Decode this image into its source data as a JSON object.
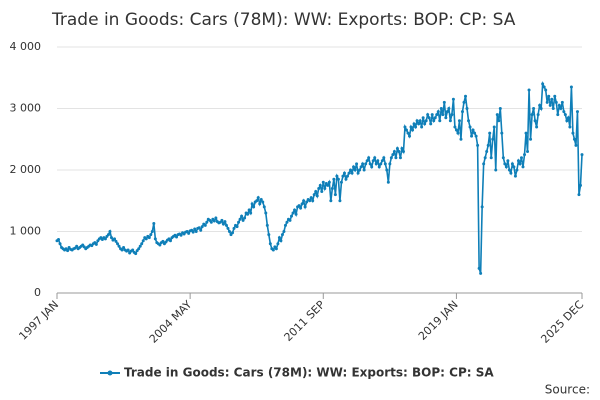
{
  "chart_data": {
    "type": "line",
    "title": "Trade in Goods: Cars (78M): WW: Exports: BOP: CP: SA",
    "source": "Source:",
    "categories": [
      "1997 JAN",
      null,
      null,
      null,
      null,
      null,
      null,
      null,
      null,
      null,
      null,
      null,
      null,
      null,
      null,
      null,
      null,
      null,
      null,
      null,
      null,
      null,
      null,
      null,
      null,
      null,
      null,
      null,
      null,
      null,
      null,
      null,
      null,
      null,
      null,
      null,
      null,
      null,
      null,
      null,
      null,
      null,
      null,
      null,
      null,
      null,
      null,
      null,
      null,
      null,
      null,
      null,
      null,
      null,
      null,
      null,
      null,
      null,
      null,
      null,
      null,
      null,
      null,
      null,
      null,
      null,
      null,
      null,
      null,
      null,
      null,
      null,
      null,
      null,
      null,
      null,
      null,
      null,
      null,
      null,
      null,
      null,
      null,
      null,
      null,
      null,
      null,
      null,
      "2004 MAY",
      null,
      null,
      null,
      null,
      null,
      null,
      null,
      null,
      null,
      null,
      null,
      null,
      null,
      null,
      null,
      null,
      null,
      null,
      null,
      null,
      null,
      null,
      null,
      null,
      null,
      null,
      null,
      null,
      null,
      null,
      null,
      null,
      null,
      null,
      null,
      null,
      null,
      null,
      null,
      null,
      null,
      null,
      null,
      null,
      null,
      null,
      null,
      null,
      null,
      null,
      null,
      null,
      null,
      null,
      null,
      null,
      null,
      null,
      null,
      null,
      null,
      null,
      null,
      null,
      null,
      null,
      null,
      null,
      null,
      null,
      null,
      null,
      null,
      null,
      null,
      null,
      null,
      null,
      null,
      null,
      null,
      null,
      null,
      null,
      null,
      null,
      null,
      "2011 SEP",
      null,
      null,
      null,
      null,
      null,
      null,
      null,
      null,
      null,
      null,
      null,
      null,
      null,
      null,
      null,
      null,
      null,
      null,
      null,
      null,
      null,
      null,
      null,
      null,
      null,
      null,
      null,
      null,
      null,
      null,
      null,
      null,
      null,
      null,
      null,
      null,
      null,
      null,
      null,
      null,
      null,
      null,
      null,
      null,
      null,
      null,
      null,
      null,
      null,
      null,
      null,
      null,
      null,
      null,
      null,
      null,
      null,
      null,
      null,
      null,
      null,
      null,
      null,
      null,
      null,
      null,
      null,
      null,
      null,
      null,
      null,
      null,
      null,
      null,
      null,
      null,
      null,
      null,
      null,
      null,
      null,
      null,
      null,
      null,
      null,
      null,
      null,
      "2019 JAN",
      null,
      null,
      null,
      null,
      null,
      null,
      null,
      null,
      null,
      null,
      null,
      null,
      null,
      null,
      null,
      null,
      null,
      null,
      null,
      null,
      null,
      null,
      null,
      null,
      null,
      null,
      null,
      null,
      null,
      null,
      null,
      null,
      null,
      null,
      null,
      null,
      null,
      null,
      null,
      null,
      null,
      null,
      null,
      null,
      null,
      null,
      null,
      null,
      null,
      null,
      null,
      null,
      null,
      null,
      null,
      null,
      null,
      null,
      null,
      null,
      null,
      null,
      null,
      null,
      null,
      null,
      null,
      null,
      null,
      null,
      null,
      null,
      null,
      null,
      null,
      null,
      null,
      null,
      null,
      null,
      null,
      null,
      "2025 DEC"
    ],
    "series": [
      {
        "name": "Trade in Goods: Cars (78M): WW: Exports: BOP: CP: SA",
        "color": "#0f7fb8",
        "values": [
          850,
          870,
          800,
          740,
          720,
          700,
          720,
          690,
          740,
          710,
          700,
          720,
          730,
          760,
          720,
          740,
          760,
          780,
          750,
          720,
          740,
          760,
          780,
          770,
          800,
          820,
          790,
          850,
          880,
          900,
          870,
          900,
          880,
          920,
          950,
          1000,
          900,
          860,
          880,
          840,
          800,
          760,
          720,
          700,
          740,
          700,
          680,
          700,
          650,
          680,
          700,
          660,
          640,
          690,
          720,
          760,
          800,
          850,
          900,
          880,
          920,
          900,
          950,
          1000,
          1130,
          880,
          820,
          800,
          780,
          820,
          840,
          800,
          830,
          860,
          880,
          850,
          900,
          920,
          940,
          910,
          950,
          960,
          940,
          980,
          960,
          990,
          1000,
          970,
          1010,
          1020,
          990,
          1040,
          1000,
          1050,
          1060,
          1020,
          1080,
          1120,
          1100,
          1150,
          1200,
          1180,
          1150,
          1200,
          1170,
          1220,
          1160,
          1140,
          1150,
          1180,
          1120,
          1160,
          1100,
          1050,
          1000,
          950,
          980,
          1050,
          1100,
          1080,
          1150,
          1200,
          1250,
          1180,
          1220,
          1300,
          1280,
          1350,
          1300,
          1450,
          1400,
          1480,
          1500,
          1550,
          1450,
          1520,
          1480,
          1400,
          1300,
          1100,
          950,
          800,
          720,
          700,
          750,
          720,
          800,
          900,
          850,
          950,
          1000,
          1100,
          1150,
          1200,
          1180,
          1250,
          1300,
          1350,
          1280,
          1400,
          1420,
          1380,
          1450,
          1500,
          1400,
          1480,
          1520,
          1500,
          1550,
          1500,
          1600,
          1650,
          1580,
          1700,
          1750,
          1650,
          1800,
          1700,
          1780,
          1750,
          1800,
          1500,
          1700,
          1850,
          1600,
          1900,
          1850,
          1500,
          1800,
          1900,
          1950,
          1850,
          1900,
          1950,
          2000,
          1950,
          2050,
          2000,
          2100,
          1950,
          2000,
          2050,
          2100,
          2000,
          2100,
          2150,
          2200,
          2100,
          2050,
          2150,
          2200,
          2100,
          2150,
          2050,
          2100,
          2150,
          2200,
          2100,
          2000,
          1800,
          2100,
          2200,
          2250,
          2300,
          2200,
          2350,
          2300,
          2200,
          2350,
          2300,
          2700,
          2650,
          2600,
          2550,
          2700,
          2650,
          2750,
          2700,
          2800,
          2750,
          2800,
          2700,
          2850,
          2750,
          2800,
          2900,
          2850,
          2750,
          2900,
          2800,
          2850,
          2900,
          2950,
          2800,
          3000,
          2900,
          3100,
          2850,
          2950,
          3000,
          2800,
          2900,
          3150,
          2700,
          2650,
          2600,
          2800,
          2500,
          2950,
          3100,
          3200,
          3000,
          2800,
          2700,
          2550,
          2650,
          2600,
          2550,
          2400,
          400,
          320,
          1400,
          2100,
          2200,
          2300,
          2400,
          2600,
          2200,
          2500,
          2700,
          2000,
          2900,
          2800,
          3000,
          2600,
          2200,
          2100,
          2050,
          2150,
          2000,
          1950,
          2100,
          2050,
          1900,
          2000,
          2150,
          2100,
          2200,
          2050,
          2250,
          2600,
          2300,
          3300,
          2500,
          2900,
          3000,
          2800,
          2700,
          2900,
          3050,
          3000,
          3400,
          3350,
          3300,
          3100,
          3200,
          3050,
          3150,
          3000,
          3200,
          3100,
          2900,
          3050,
          3000,
          3100,
          2950,
          2900,
          2800,
          2850,
          2700,
          3350,
          2600,
          2500,
          2400,
          2950,
          1600,
          1750,
          2250
        ]
      }
    ],
    "ylim": [
      0,
      4000
    ],
    "yticks": [
      0,
      {
        "value": 1000,
        "label": "1 000"
      },
      {
        "value": 2000,
        "label": "2 000"
      },
      {
        "value": 3000,
        "label": "3 000"
      },
      {
        "value": 4000,
        "label": "4 000"
      }
    ],
    "grid": true,
    "legend": "bottom"
  }
}
